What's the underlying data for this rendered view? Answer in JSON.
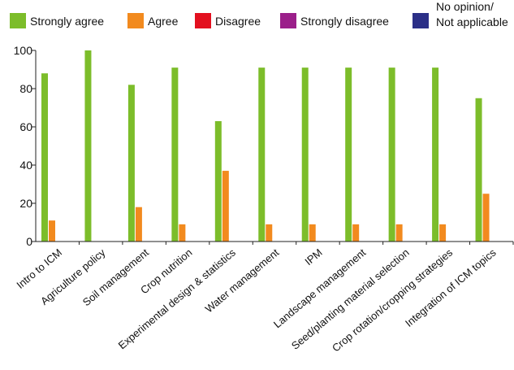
{
  "chart_data": {
    "type": "bar",
    "categories": [
      "Intro to ICM",
      "Agriculture policy",
      "Soil management",
      "Crop nutrition",
      "Experimental design & statistics",
      "Water management",
      "IPM",
      "Landscape management",
      "Seed/planting material selection",
      "Crop rotation/cropping strategies",
      "Integration of ICM topics"
    ],
    "series": [
      {
        "name": "Strongly agree",
        "color": "#7cbd2a",
        "values": [
          88,
          100,
          82,
          91,
          63,
          91,
          91,
          91,
          91,
          91,
          75
        ]
      },
      {
        "name": "Agree",
        "color": "#f28a1e",
        "values": [
          11,
          0,
          18,
          9,
          37,
          9,
          9,
          9,
          9,
          9,
          25
        ]
      },
      {
        "name": "Disagree",
        "color": "#e3101f",
        "values": [
          0,
          0,
          0,
          0,
          0,
          0,
          0,
          0,
          0,
          0,
          0
        ]
      },
      {
        "name": "Strongly disagree",
        "color": "#9b1f8a",
        "values": [
          0,
          0,
          0,
          0,
          0,
          0,
          0,
          0,
          0,
          0,
          0
        ]
      },
      {
        "name": "No opinion/|Not applicable",
        "color": "#2b2f87",
        "values": [
          0,
          0,
          0,
          0,
          0,
          0,
          0,
          0,
          0,
          0,
          0
        ]
      }
    ],
    "yticks": [
      "0",
      "20",
      "40",
      "60",
      "80",
      "100"
    ],
    "ylim": [
      0,
      100
    ],
    "grid": false,
    "legend_position": "top"
  }
}
